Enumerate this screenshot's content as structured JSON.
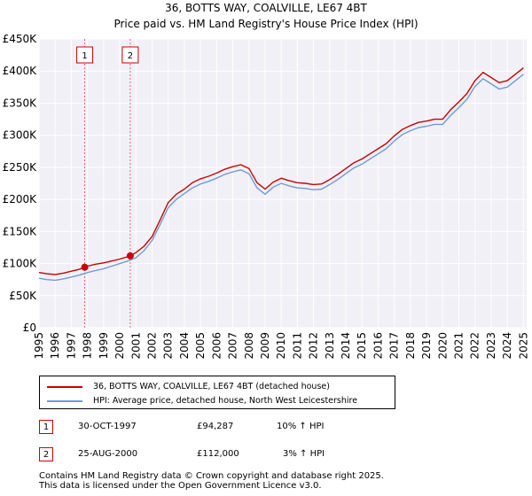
{
  "chart_data": {
    "type": "line",
    "title": "36, BOTTS WAY, COALVILLE, LE67 4BT",
    "subtitle": "Price paid vs. HM Land Registry's House Price Index (HPI)",
    "xlabel": "",
    "ylabel": "",
    "xlim": [
      1995,
      2025.2
    ],
    "ylim": [
      0,
      450000
    ],
    "grid": true,
    "y_ticks": [
      0,
      50000,
      100000,
      150000,
      200000,
      250000,
      300000,
      350000,
      400000,
      450000
    ],
    "y_tick_labels": [
      "£0",
      "£50K",
      "£100K",
      "£150K",
      "£200K",
      "£250K",
      "£300K",
      "£350K",
      "£400K",
      "£450K"
    ],
    "x_ticks": [
      "1995",
      "1996",
      "1997",
      "1998",
      "1999",
      "2000",
      "2001",
      "2002",
      "2003",
      "2004",
      "2005",
      "2006",
      "2007",
      "2008",
      "2009",
      "2010",
      "2011",
      "2012",
      "2013",
      "2014",
      "2015",
      "2016",
      "2017",
      "2018",
      "2019",
      "2020",
      "2021",
      "2022",
      "2023",
      "2024",
      "2025"
    ],
    "series": [
      {
        "name": "36, BOTTS WAY, COALVILLE, LE67 4BT (detached house)",
        "color": "#cc0000",
        "x": [
          1995.0,
          1995.5,
          1996.0,
          1996.5,
          1997.0,
          1997.5,
          1997.83,
          1998.0,
          1998.5,
          1999.0,
          1999.5,
          2000.0,
          2000.65,
          2001.0,
          2001.5,
          2002.0,
          2002.5,
          2003.0,
          2003.5,
          2004.0,
          2004.5,
          2005.0,
          2005.5,
          2006.0,
          2006.5,
          2007.0,
          2007.5,
          2008.0,
          2008.5,
          2009.0,
          2009.5,
          2010.0,
          2010.5,
          2011.0,
          2011.5,
          2012.0,
          2012.5,
          2013.0,
          2013.5,
          2014.0,
          2014.5,
          2015.0,
          2015.5,
          2016.0,
          2016.5,
          2017.0,
          2017.5,
          2018.0,
          2018.5,
          2019.0,
          2019.5,
          2020.0,
          2020.5,
          2021.0,
          2021.5,
          2022.0,
          2022.5,
          2023.0,
          2023.5,
          2024.0,
          2024.5,
          2025.0
        ],
        "values": [
          86000,
          84000,
          83000,
          85000,
          88000,
          91000,
          94287,
          96000,
          99000,
          101000,
          104000,
          107000,
          112000,
          117000,
          127000,
          142000,
          168000,
          195000,
          208000,
          216000,
          226000,
          232000,
          236000,
          241000,
          247000,
          251000,
          254000,
          248000,
          226000,
          216000,
          227000,
          233000,
          229000,
          226000,
          225000,
          223000,
          224000,
          231000,
          239000,
          248000,
          257000,
          263000,
          271000,
          279000,
          287000,
          299000,
          309000,
          315000,
          320000,
          322000,
          325000,
          325000,
          340000,
          352000,
          365000,
          385000,
          398000,
          390000,
          382000,
          385000,
          395000,
          405000
        ]
      },
      {
        "name": "HPI: Average price, detached house, North West Leicestershire",
        "color": "#6f9bd8",
        "x": [
          1995.0,
          1995.5,
          1996.0,
          1996.5,
          1997.0,
          1997.5,
          1998.0,
          1998.5,
          1999.0,
          1999.5,
          2000.0,
          2000.5,
          2001.0,
          2001.5,
          2002.0,
          2002.5,
          2003.0,
          2003.5,
          2004.0,
          2004.5,
          2005.0,
          2005.5,
          2006.0,
          2006.5,
          2007.0,
          2007.5,
          2008.0,
          2008.5,
          2009.0,
          2009.5,
          2010.0,
          2010.5,
          2011.0,
          2011.5,
          2012.0,
          2012.5,
          2013.0,
          2013.5,
          2014.0,
          2014.5,
          2015.0,
          2015.5,
          2016.0,
          2016.5,
          2017.0,
          2017.5,
          2018.0,
          2018.5,
          2019.0,
          2019.5,
          2020.0,
          2020.5,
          2021.0,
          2021.5,
          2022.0,
          2022.5,
          2023.0,
          2023.5,
          2024.0,
          2024.5,
          2025.0
        ],
        "values": [
          77000,
          75000,
          74000,
          76000,
          79000,
          82000,
          86000,
          89000,
          92000,
          96000,
          100000,
          104000,
          109000,
          120000,
          136000,
          161000,
          187000,
          200000,
          209000,
          218000,
          224000,
          228000,
          233000,
          239000,
          243000,
          246000,
          240000,
          218000,
          208000,
          219000,
          225000,
          221000,
          218000,
          217000,
          215000,
          216000,
          223000,
          231000,
          240000,
          249000,
          255000,
          263000,
          271000,
          279000,
          291000,
          301000,
          307000,
          312000,
          314000,
          317000,
          317000,
          331000,
          343000,
          356000,
          376000,
          388000,
          380000,
          372000,
          375000,
          385000,
          395000
        ]
      }
    ],
    "sales": [
      {
        "marker": "1",
        "year": 1997.83,
        "price": 94287,
        "date": "30-OCT-1997",
        "price_label": "£94,287",
        "hpi": "10% ↑ HPI"
      },
      {
        "marker": "2",
        "year": 2000.65,
        "price": 112000,
        "date": "25-AUG-2000",
        "price_label": "£112,000",
        "hpi": "3% ↑ HPI"
      }
    ]
  },
  "legend": {
    "sales_label": "36, BOTTS WAY, COALVILLE, LE67 4BT (detached house)",
    "hpi_label": "HPI: Average price, detached house, North West Leicestershire"
  },
  "footer": {
    "line1": "Contains HM Land Registry data © Crown copyright and database right 2025.",
    "line2": "This data is licensed under the Open Government Licence v3.0."
  }
}
